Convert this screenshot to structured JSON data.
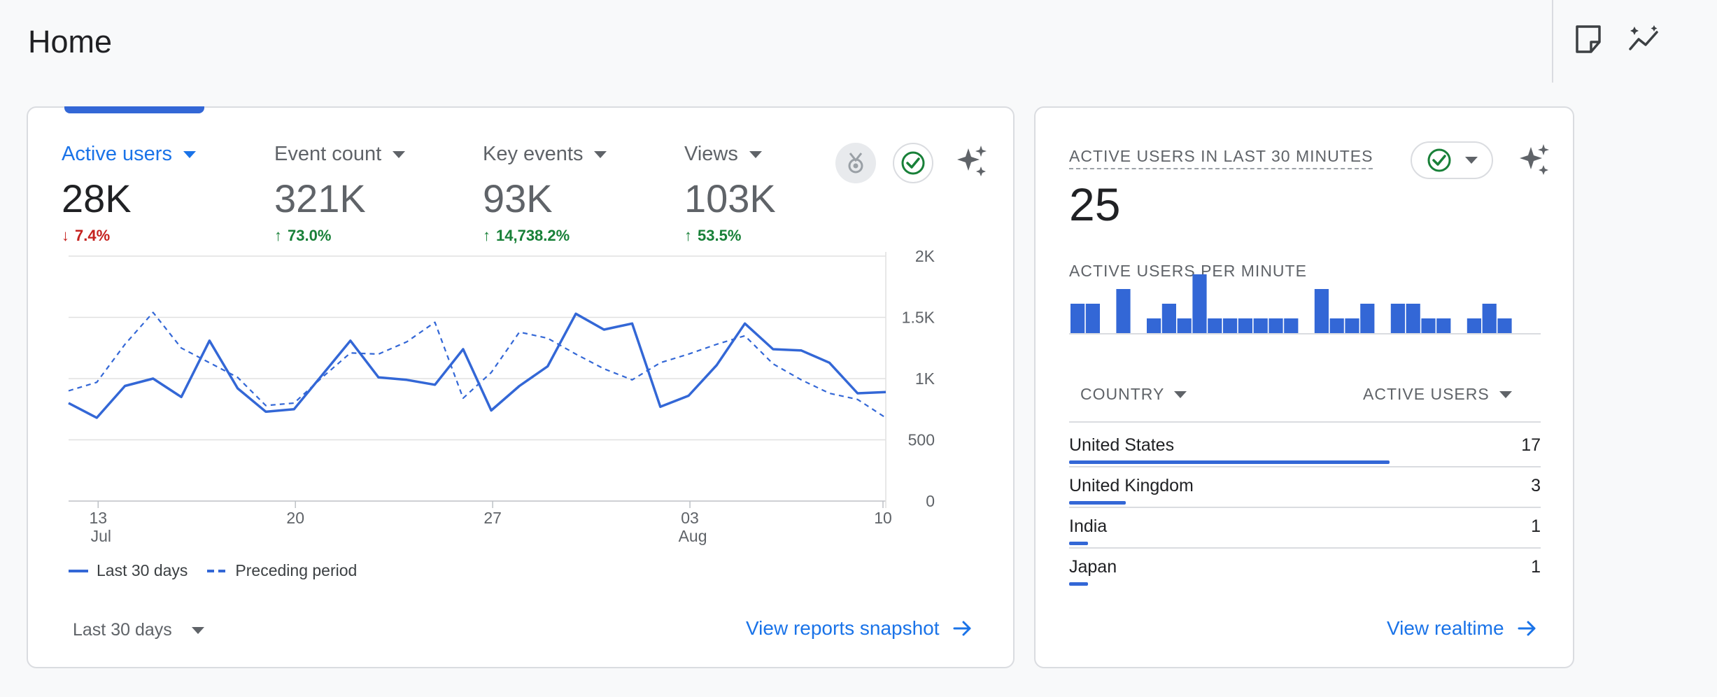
{
  "page": {
    "title": "Home"
  },
  "colors": {
    "accent": "#1a73e8",
    "series": "#3367d6",
    "down": "#c5221f",
    "up": "#188038"
  },
  "header_icons": [
    "notes-icon",
    "insights-icon"
  ],
  "metrics": [
    {
      "label": "Active users",
      "value": "28K",
      "change": "7.4%",
      "direction": "down",
      "active": true
    },
    {
      "label": "Event count",
      "value": "321K",
      "change": "73.0%",
      "direction": "up",
      "active": false
    },
    {
      "label": "Key events",
      "value": "93K",
      "change": "14,738.2%",
      "direction": "up",
      "active": false
    },
    {
      "label": "Views",
      "value": "103K",
      "change": "53.5%",
      "direction": "up",
      "active": false
    }
  ],
  "chart_data": {
    "type": "line",
    "x_ticks": [
      {
        "day": "13",
        "month": "Jul"
      },
      {
        "day": "20",
        "month": ""
      },
      {
        "day": "27",
        "month": ""
      },
      {
        "day": "03",
        "month": "Aug"
      },
      {
        "day": "10",
        "month": ""
      }
    ],
    "y_ticks": [
      "2K",
      "1.5K",
      "1K",
      "500",
      "0"
    ],
    "ylim": [
      0,
      2000
    ],
    "grid": true,
    "series": [
      {
        "name": "Last 30 days",
        "style": "solid",
        "values": [
          800,
          680,
          940,
          1000,
          850,
          1310,
          920,
          730,
          750,
          1030,
          1310,
          1010,
          990,
          950,
          1240,
          740,
          940,
          1100,
          1530,
          1400,
          1450,
          770,
          860,
          1110,
          1450,
          1240,
          1230,
          1130,
          880,
          890
        ]
      },
      {
        "name": "Preceding period",
        "style": "dashed",
        "values": [
          900,
          970,
          1280,
          1540,
          1250,
          1130,
          1010,
          780,
          800,
          1010,
          1210,
          1200,
          1300,
          1460,
          840,
          1050,
          1380,
          1330,
          1200,
          1080,
          990,
          1130,
          1200,
          1280,
          1350,
          1120,
          990,
          880,
          830,
          680
        ]
      }
    ],
    "legend": [
      "Last 30 days",
      "Preceding period"
    ],
    "legend_position": "bottom-left"
  },
  "date_range": {
    "label": "Last 30 days"
  },
  "links": {
    "reports": "View reports snapshot",
    "realtime": "View realtime"
  },
  "realtime": {
    "title": "ACTIVE USERS IN LAST 30 MINUTES",
    "value": "25",
    "per_minute_label": "ACTIVE USERS PER MINUTE",
    "per_minute": [
      2,
      2,
      0,
      3,
      0,
      1,
      2,
      1,
      4,
      1,
      1,
      1,
      1,
      1,
      1,
      0,
      3,
      1,
      1,
      2,
      0,
      2,
      2,
      1,
      1,
      0,
      1,
      2,
      1,
      0
    ],
    "table": {
      "col_country": "COUNTRY",
      "col_users": "ACTIVE USERS",
      "rows": [
        {
          "country": "United States",
          "users": "17",
          "share": 0.68
        },
        {
          "country": "United Kingdom",
          "users": "3",
          "share": 0.12
        },
        {
          "country": "India",
          "users": "1",
          "share": 0.04
        },
        {
          "country": "Japan",
          "users": "1",
          "share": 0.04
        }
      ]
    }
  }
}
